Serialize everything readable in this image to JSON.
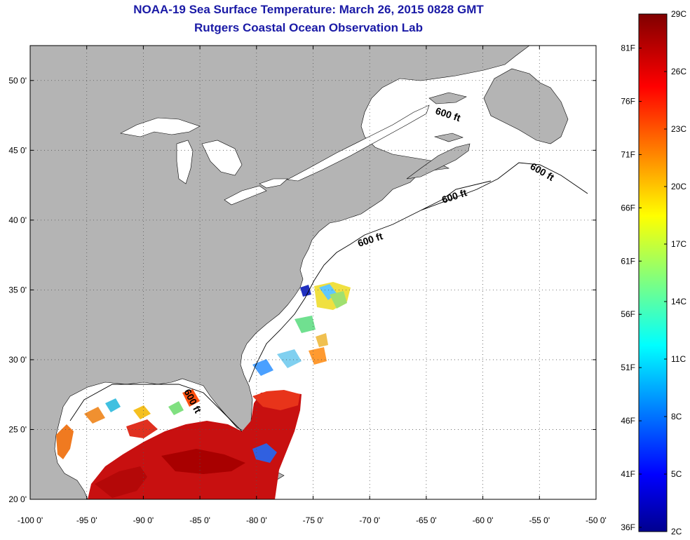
{
  "title": {
    "line1": "NOAA-19 Sea Surface Temperature:  March 26, 2015 0828 GMT",
    "line2": "Rutgers Coastal Ocean Observation Lab"
  },
  "axes": {
    "x_ticks": [
      "-100 0'",
      "-95 0'",
      "-90 0'",
      "-85 0'",
      "-80 0'",
      "-75 0'",
      "-70 0'",
      "-65 0'",
      "-60 0'",
      "-55 0'",
      "-50 0'"
    ],
    "x_values": [
      -100,
      -95,
      -90,
      -85,
      -80,
      -75,
      -70,
      -65,
      -60,
      -55,
      -50
    ],
    "y_ticks": [
      "50 0'",
      "45 0'",
      "40 0'",
      "35 0'",
      "30 0'",
      "25 0'",
      "20 0'"
    ],
    "y_values": [
      50,
      45,
      40,
      35,
      30,
      25,
      20
    ],
    "xlim": [
      -100,
      -50
    ],
    "ylim": [
      20,
      52.5
    ],
    "grid": "dotted"
  },
  "contour_labels": [
    "600 ft",
    "600 ft",
    "600 ft",
    "600 ft",
    "600 ft"
  ],
  "colorbar": {
    "celsius": [
      "29C",
      "26C",
      "23C",
      "20C",
      "17C",
      "14C",
      "11C",
      "8C",
      "5C",
      "2C"
    ],
    "fahrenheit": [
      "81F",
      "76F",
      "71F",
      "66F",
      "61F",
      "56F",
      "51F",
      "46F",
      "41F",
      "36F"
    ],
    "celsius_values": [
      29,
      26,
      23,
      20,
      17,
      14,
      11,
      8,
      5,
      2
    ],
    "fahrenheit_values": [
      81,
      76,
      71,
      66,
      61,
      56,
      51,
      46,
      41,
      36
    ],
    "range_c": [
      2,
      29
    ],
    "colormap": "jet"
  },
  "colors": {
    "land": "#b4b4b4",
    "ocean": "#ffffff",
    "title": "#1a1aa6",
    "warm": "#d41010",
    "hot": "#b00000"
  }
}
